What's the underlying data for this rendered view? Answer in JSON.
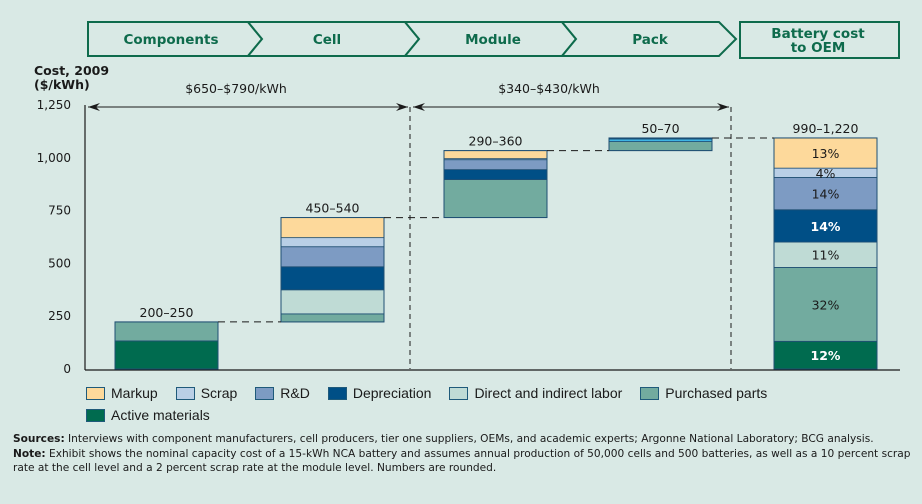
{
  "stages": [
    {
      "label": "Components"
    },
    {
      "label": "Cell"
    },
    {
      "label": "Module"
    },
    {
      "label": "Pack"
    },
    {
      "label_line1": "Battery cost",
      "label_line2": "to OEM"
    }
  ],
  "axis_title_line1": "Cost, 2009",
  "axis_title_line2": "($/kWh)",
  "ranges": [
    {
      "label": "$650–$790/kWh"
    },
    {
      "label": "$340–$430/kWh"
    }
  ],
  "colors": {
    "Markup": "#fdd99b",
    "Scrap": "#b9cfe6",
    "R&D": "#7d9bc3",
    "Depreciation": "#004f86",
    "Direct and indirect labor": "#bfdbd5",
    "Purchased parts": "#72ab9f",
    "Active materials": "#006b4f",
    "Pack scrap": "#3fb5e5"
  },
  "legend": [
    {
      "label": "Markup"
    },
    {
      "label": "Scrap"
    },
    {
      "label": "R&D"
    },
    {
      "label": "Depreciation"
    },
    {
      "label": "Direct and indirect labor"
    },
    {
      "label": "Purchased parts"
    },
    {
      "label": "Active materials"
    }
  ],
  "notes": {
    "sources_label": "Sources:",
    "sources_text": " Interviews with component manufacturers, cell producers, tier one suppliers, OEMs, and academic experts; Argonne National Laboratory; BCG analysis.",
    "note_label": "Note:",
    "note_text": " Exhibit shows the nominal capacity cost of a 15-kWh NCA battery and assumes annual production of 50,000 cells and 500 batteries, as well as a 10 percent scrap rate at the cell level and a 2 percent scrap rate at the module level. Numbers are rounded."
  },
  "chart_data": {
    "type": "bar",
    "subtype": "waterfall-stacked",
    "title": "",
    "ylabel": "Cost, 2009 ($/kWh)",
    "xlabel": "",
    "ylim": [
      0,
      1250
    ],
    "yticks": [
      0,
      250,
      500,
      750,
      1000,
      1250
    ],
    "ytick_labels": [
      "0",
      "250",
      "500",
      "750",
      "1,000",
      "1,250"
    ],
    "grid": false,
    "legend_position": "bottom",
    "categories": [
      "Components",
      "Cell",
      "Module",
      "Pack",
      "Battery cost to OEM"
    ],
    "bars": [
      {
        "category": "Components",
        "label": "200–250",
        "base": 0,
        "segments": [
          {
            "name": "Active materials",
            "value": 133
          },
          {
            "name": "Purchased parts",
            "value": 90
          }
        ]
      },
      {
        "category": "Cell",
        "label": "450–540",
        "base": 223,
        "segments": [
          {
            "name": "Purchased parts",
            "value": 38
          },
          {
            "name": "Direct and indirect labor",
            "value": 114
          },
          {
            "name": "Depreciation",
            "value": 109
          },
          {
            "name": "R&D",
            "value": 95
          },
          {
            "name": "Scrap",
            "value": 43
          },
          {
            "name": "Markup",
            "value": 95
          }
        ]
      },
      {
        "category": "Module",
        "label": "290–360",
        "base": 717,
        "segments": [
          {
            "name": "Purchased parts",
            "value": 180
          },
          {
            "name": "Depreciation",
            "value": 47
          },
          {
            "name": "R&D",
            "value": 47
          },
          {
            "name": "Scrap",
            "value": 5
          },
          {
            "name": "Markup",
            "value": 38
          }
        ]
      },
      {
        "category": "Pack",
        "label": "50–70",
        "base": 1034,
        "segments": [
          {
            "name": "Purchased parts",
            "value": 43
          },
          {
            "name": "Pack scrap",
            "value": 12
          },
          {
            "name": "Depreciation",
            "value": 5
          }
        ]
      },
      {
        "category": "Battery cost to OEM",
        "label": "990–1,220",
        "base": 0,
        "segments": [
          {
            "name": "Active materials",
            "value": 131,
            "pct_label": "12%",
            "light_text": true
          },
          {
            "name": "Purchased parts",
            "value": 350,
            "pct_label": "32%"
          },
          {
            "name": "Direct and indirect labor",
            "value": 120,
            "pct_label": "11%"
          },
          {
            "name": "Depreciation",
            "value": 153,
            "pct_label": "14%",
            "light_text": true
          },
          {
            "name": "R&D",
            "value": 153,
            "pct_label": "14%"
          },
          {
            "name": "Scrap",
            "value": 44,
            "pct_label": "4%"
          },
          {
            "name": "Markup",
            "value": 143,
            "pct_label": "13%"
          }
        ]
      }
    ],
    "annotations": [
      {
        "text": "$650–$790/kWh",
        "spans": [
          "Components",
          "Cell"
        ]
      },
      {
        "text": "$340–$430/kWh",
        "spans": [
          "Module",
          "Pack"
        ]
      }
    ]
  }
}
